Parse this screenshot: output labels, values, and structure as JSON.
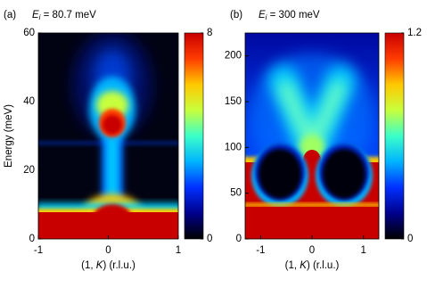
{
  "chart_data": [
    {
      "type": "heatmap",
      "panel": "(a)",
      "title": {
        "symbol": "E",
        "subscript": "i",
        "text": " = 80.7 meV"
      },
      "xlabel": [
        "(1, ",
        "K",
        ") (r.l.u.)"
      ],
      "ylabel": "Energy (meV)",
      "xlim": [
        -1,
        1
      ],
      "ylim": [
        0,
        60
      ],
      "xticks": [
        -1,
        0,
        1
      ],
      "yticks": [
        0,
        20,
        40,
        60
      ],
      "clim": [
        0,
        8
      ],
      "cticks": [
        0,
        8
      ],
      "colormap": [
        "#000000",
        "#00008c",
        "#0030ff",
        "#00b4ff",
        "#3cffc8",
        "#c8ff3c",
        "#ffc800",
        "#ff3c00",
        "#c80000"
      ]
    },
    {
      "type": "heatmap",
      "panel": "(b)",
      "title": {
        "symbol": "E",
        "subscript": "i",
        "text": " = 300 meV"
      },
      "xlabel": [
        "(1, ",
        "K",
        ") (r.l.u.)"
      ],
      "xlim": [
        -1.3,
        1.3
      ],
      "ylim": [
        0,
        225
      ],
      "xticks": [
        -1,
        0,
        1
      ],
      "yticks": [
        0,
        50,
        100,
        150,
        200
      ],
      "clim": [
        0,
        1.2
      ],
      "cticks": [
        0,
        1.2
      ],
      "colormap": [
        "#000000",
        "#00008c",
        "#0030ff",
        "#00b4ff",
        "#3cffc8",
        "#c8ff3c",
        "#ffc800",
        "#ff3c00",
        "#c80000"
      ]
    }
  ]
}
